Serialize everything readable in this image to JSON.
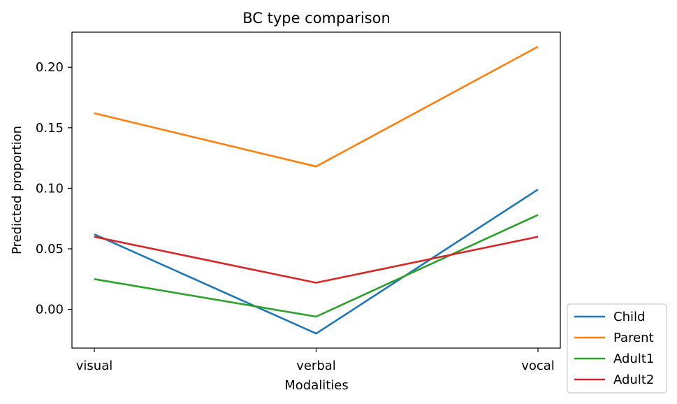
{
  "chart_data": {
    "type": "line",
    "title": "BC type comparison",
    "xlabel": "Modalities",
    "ylabel": "Predicted proportion",
    "categories": [
      "visual",
      "verbal",
      "vocal"
    ],
    "ylim": [
      -0.032,
      0.229
    ],
    "yticks": [
      "0.00",
      "0.05",
      "0.10",
      "0.15",
      "0.20"
    ],
    "grid": false,
    "legend_position": "outside-bottom-right",
    "series": [
      {
        "name": "Child",
        "color": "#1f77b4",
        "values": [
          0.062,
          -0.02,
          0.099
        ]
      },
      {
        "name": "Parent",
        "color": "#ff7f0e",
        "values": [
          0.162,
          0.118,
          0.217
        ]
      },
      {
        "name": "Adult1",
        "color": "#2ca02c",
        "values": [
          0.025,
          -0.006,
          0.078
        ]
      },
      {
        "name": "Adult2",
        "color": "#d62728",
        "values": [
          0.06,
          0.022,
          0.06
        ]
      }
    ]
  }
}
